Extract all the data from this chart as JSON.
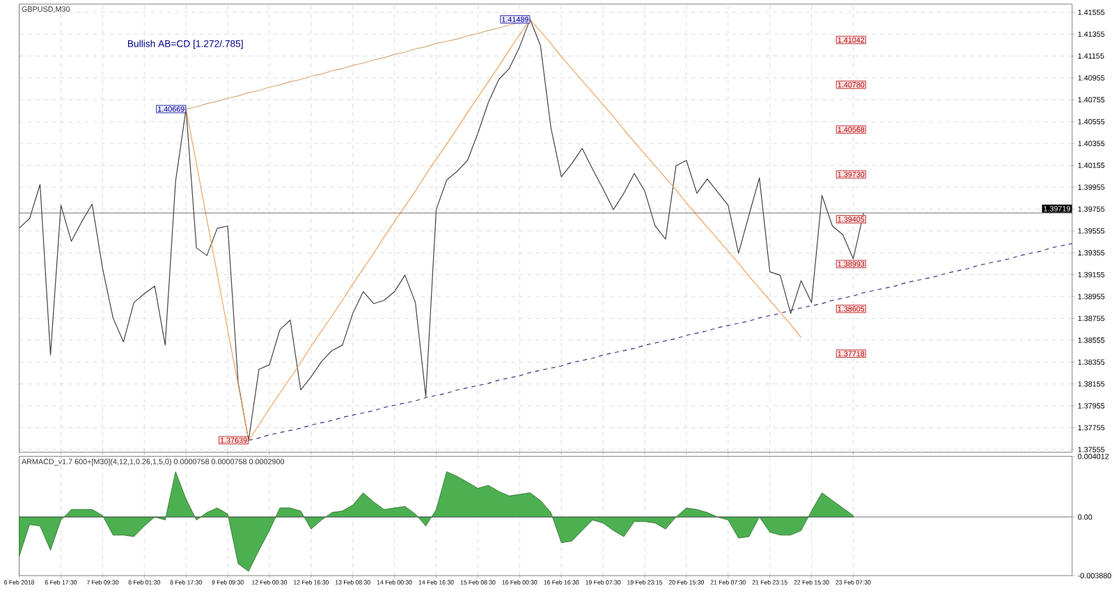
{
  "chart_data": [
    {
      "type": "line",
      "title": "GBPUSD,M30",
      "categories": [
        null,
        null,
        null,
        null,
        null,
        null,
        null,
        null,
        null,
        null,
        null,
        null,
        null,
        null,
        null,
        null,
        null,
        null,
        null,
        null,
        null,
        null,
        null,
        null,
        null,
        null,
        null,
        null,
        null,
        null,
        null,
        null,
        null,
        null,
        null,
        null,
        null,
        null,
        null,
        null,
        null,
        null,
        null,
        null,
        null,
        null,
        null,
        null,
        null,
        null,
        null,
        null,
        null,
        null,
        null,
        null,
        null,
        null,
        null,
        null,
        null,
        null,
        null,
        null,
        null,
        null,
        null,
        null,
        null,
        null,
        null,
        null,
        null,
        null,
        null,
        null,
        null,
        null,
        null,
        null,
        null,
        null,
        null,
        null,
        null,
        null,
        null,
        null,
        null,
        null,
        null,
        null,
        null,
        null,
        null,
        null,
        null,
        null,
        null,
        null,
        null,
        null
      ],
      "ylim": [
        1.3753,
        1.4163
      ],
      "yticks": [
        1.41555,
        1.41355,
        1.41155,
        1.40955,
        1.40755,
        1.40555,
        1.40355,
        1.40155,
        1.39955,
        1.39755,
        1.39555,
        1.39355,
        1.39155,
        1.38955,
        1.38755,
        1.38555,
        1.38355,
        1.38155,
        1.37955,
        1.37755,
        1.37555
      ],
      "tick_labels": "y",
      "grid": true,
      "series": [
        {
          "color": "#404040",
          "values": [
            1.3958,
            1.3967,
            1.3998,
            1.3842,
            1.3979,
            1.3946,
            1.3964,
            1.398,
            1.3921,
            1.3876,
            1.3854,
            1.389,
            1.3898,
            1.3905,
            1.3851,
            1.4001,
            1.4067,
            1.394,
            1.3933,
            1.3958,
            1.396,
            1.3817,
            1.3764,
            1.3829,
            1.3833,
            1.3865,
            1.3874,
            1.381,
            1.3822,
            1.3836,
            1.3846,
            1.3851,
            1.388,
            1.39,
            1.3889,
            1.3892,
            1.39,
            1.3915,
            1.389,
            1.3804,
            1.3975,
            1.4002,
            1.401,
            1.402,
            1.4045,
            1.4073,
            1.4094,
            1.4104,
            1.4124,
            1.4149,
            1.4125,
            1.405,
            1.4005,
            1.4017,
            1.4031,
            1.4012,
            1.3994,
            1.3975,
            1.399,
            1.4008,
            1.3992,
            1.396,
            1.3948,
            1.4015,
            1.402,
            1.399,
            1.4003,
            1.3991,
            1.3979,
            1.3935,
            1.397,
            1.4004,
            1.3918,
            1.3915,
            1.388,
            1.391,
            1.389,
            1.3988,
            1.396,
            1.3952,
            1.393,
            1.3972,
            null,
            null,
            null,
            null,
            null,
            null,
            null,
            null,
            null,
            null,
            null,
            null,
            null,
            null,
            null,
            null,
            null,
            null,
            null,
            null
          ]
        },
        {
          "color": "#f0a060",
          "values": [
            null,
            null,
            null,
            null,
            null,
            null,
            null,
            null,
            null,
            null,
            null,
            null,
            null,
            null,
            null,
            null,
            1.4067,
            1.4017,
            1.3966,
            1.3916,
            1.3865,
            1.3815,
            1.3764,
            1.3778,
            1.3793,
            1.3807,
            1.3821,
            1.3835,
            1.385,
            1.3864,
            1.3878,
            1.3892,
            1.3907,
            1.3921,
            1.3935,
            1.395,
            1.3964,
            1.3978,
            1.3992,
            1.4007,
            1.4021,
            1.4035,
            1.4049,
            1.4064,
            1.4078,
            1.4092,
            1.4106,
            1.4121,
            1.4135,
            1.4149,
            1.4138,
            1.4127,
            1.4115,
            1.4104,
            1.4093,
            1.4082,
            1.4071,
            1.406,
            1.4048,
            1.4037,
            1.4026,
            1.4015,
            1.4004,
            1.3993,
            1.3981,
            1.397,
            1.3959,
            1.3948,
            1.3937,
            1.3926,
            1.3914,
            1.3903,
            1.3892,
            1.3881,
            1.387,
            1.3858,
            null,
            null,
            null,
            null,
            null,
            null,
            null,
            null,
            null,
            null,
            null,
            null,
            null,
            null,
            null,
            null,
            null,
            null,
            null,
            null,
            null,
            null,
            null,
            null,
            null,
            null
          ]
        },
        {
          "color": "#d8a878",
          "values": [
            null,
            null,
            null,
            null,
            null,
            null,
            null,
            null,
            null,
            null,
            null,
            null,
            null,
            null,
            null,
            null,
            1.4067,
            1.4069,
            1.4072,
            1.4074,
            1.4077,
            1.4079,
            1.4082,
            1.4084,
            1.4087,
            1.4089,
            1.4092,
            1.4094,
            1.4097,
            1.4099,
            1.4102,
            1.4104,
            1.4107,
            1.4109,
            1.4112,
            1.4114,
            1.4117,
            1.4119,
            1.4122,
            1.4124,
            1.4127,
            1.4129,
            1.4131,
            1.4134,
            1.4136,
            1.4139,
            1.4141,
            1.4144,
            1.4146,
            1.4149,
            null,
            null,
            null,
            null,
            null,
            null,
            null,
            null,
            null,
            null,
            null,
            null,
            null,
            null,
            null,
            null,
            null,
            null,
            null,
            null,
            null,
            null,
            null,
            null,
            null,
            null,
            null,
            null,
            null,
            null,
            null,
            null,
            null,
            null,
            null,
            null,
            null,
            null,
            null,
            null,
            null,
            null,
            null,
            null,
            null,
            null,
            null,
            null,
            null,
            null,
            null,
            null
          ]
        },
        {
          "color": "#33337f",
          "line_style": "dashed",
          "values": [
            null,
            null,
            null,
            null,
            null,
            null,
            null,
            null,
            null,
            null,
            null,
            null,
            null,
            null,
            null,
            null,
            null,
            null,
            null,
            null,
            null,
            null,
            1.3764,
            1.3766,
            1.3769,
            1.3771,
            1.3773,
            1.3775,
            1.3778,
            1.378,
            1.3782,
            1.3785,
            1.3787,
            1.3789,
            1.3791,
            1.3794,
            1.3796,
            1.3798,
            1.38,
            1.3803,
            1.3805,
            1.3807,
            1.381,
            1.3812,
            1.3814,
            1.3816,
            1.3819,
            1.3821,
            1.3823,
            1.3826,
            1.3828,
            1.383,
            1.3832,
            1.3835,
            1.3837,
            1.3839,
            1.3842,
            1.3844,
            1.3846,
            1.3848,
            1.3851,
            1.3853,
            1.3855,
            1.3857,
            1.386,
            1.3862,
            1.3864,
            1.3867,
            1.3869,
            1.3871,
            1.3873,
            1.3876,
            1.3878,
            1.388,
            1.3883,
            1.3885,
            1.3887,
            1.3889,
            1.3892,
            1.3894,
            1.3896,
            1.3899,
            1.3901,
            1.3903,
            1.3905,
            1.3908,
            1.391,
            1.3912,
            1.3914,
            1.3917,
            1.3919,
            1.3921,
            1.3924,
            1.3926,
            1.3928,
            1.393,
            1.3933,
            1.3935,
            1.3937,
            1.394,
            1.3942,
            1.3944
          ]
        }
      ],
      "ref_lines": [
        {
          "axis": "y",
          "value": 1.39719,
          "label": "1.39719"
        }
      ],
      "annotations": [
        "Bullish AB=CD [1.272/.785]",
        "1.40669",
        "1.37639",
        "1.41489",
        "1.41042",
        "1.40780",
        "1.40568",
        "1.39730",
        "1.39405",
        "1.38993",
        "1.38605",
        "1.37718"
      ]
    },
    {
      "type": "area",
      "title": "ARMACD_v1.7 600+[M30](4,12,1,0.26,1,5,0) 0.0000758 0.0000758 0.0002900",
      "categories": [
        "6 Feb 2018",
        null,
        null,
        null,
        "6 Feb 17:30",
        null,
        null,
        null,
        "7 Feb 09:30",
        null,
        null,
        null,
        "8 Feb 01:30",
        null,
        null,
        null,
        "8 Feb 17:30",
        null,
        null,
        null,
        "9 Feb 09:30",
        null,
        null,
        null,
        "12 Feb 00:30",
        null,
        null,
        null,
        "12 Feb 16:30",
        null,
        null,
        null,
        "13 Feb 08:30",
        null,
        null,
        null,
        "14 Feb 00:30",
        null,
        null,
        null,
        "14 Feb 16:30",
        null,
        null,
        null,
        "15 Feb 08:30",
        null,
        null,
        null,
        "16 Feb 00:30",
        null,
        null,
        null,
        "16 Feb 16:30",
        null,
        null,
        null,
        "19 Feb 07:30",
        null,
        null,
        null,
        "19 Feb 23:15",
        null,
        null,
        null,
        "20 Feb 15:30",
        null,
        null,
        null,
        "21 Feb 07:30",
        null,
        null,
        null,
        "21 Feb 23:15",
        null,
        null,
        null,
        "22 Feb 15:30",
        null,
        null,
        null,
        "23 Feb 07:30",
        null,
        null,
        null,
        null,
        null,
        null,
        null,
        null,
        null,
        null,
        null,
        null,
        null,
        null,
        null,
        null,
        null,
        null,
        null,
        null,
        null
      ],
      "ylim": [
        -0.00388,
        0.004012
      ],
      "yticks": [
        {
          "value": 0.004012,
          "label": "0.004012"
        },
        {
          "value": 0,
          "label": "0.00"
        },
        {
          "value": -0.00388,
          "label": "-0.003880"
        }
      ],
      "grid": "x",
      "ref_lines": [
        {
          "axis": "y",
          "value": 0
        }
      ],
      "series": [
        {
          "color": "#4caf50",
          "values": [
            -0.0026,
            -0.0005,
            -0.0006,
            -0.0022,
            -0.0002,
            0.0005,
            0.0005,
            0.0005,
            0.0001,
            -0.0012,
            -0.0012,
            -0.0013,
            -0.0006,
            0,
            -0.0002,
            0.003,
            0.0012,
            -0.0002,
            0.0003,
            0.0006,
            0.0002,
            -0.0031,
            -0.0036,
            -0.0022,
            -0.0009,
            0.0006,
            0.0006,
            0.0004,
            -0.0008,
            -0.0002,
            0.0003,
            0.0004,
            0.0008,
            0.0016,
            0.001,
            0.0005,
            0.0006,
            0.0007,
            0.0002,
            -0.0006,
            0.0005,
            0.003,
            0.0027,
            0.0023,
            0.0019,
            0.0021,
            0.0017,
            0.0014,
            0.0015,
            0.0016,
            0.0011,
            0.0003,
            -0.0017,
            -0.0016,
            -0.0009,
            -0.0002,
            -0.0004,
            -0.0009,
            -0.0013,
            -0.0003,
            -0.0003,
            -0.0004,
            -0.0008,
            0,
            0.0006,
            0.0005,
            0.0003,
            0,
            -0.0002,
            -0.0014,
            -0.0013,
            0,
            -0.001,
            -0.0012,
            -0.0012,
            -0.0009,
            0.0004,
            0.0016,
            0.0011,
            0.0006,
            0.0001,
            null,
            null,
            null,
            null,
            null,
            null,
            null,
            null,
            null,
            null,
            null,
            null,
            null,
            null,
            null,
            null,
            null,
            null,
            null,
            null,
            null
          ]
        }
      ]
    }
  ]
}
